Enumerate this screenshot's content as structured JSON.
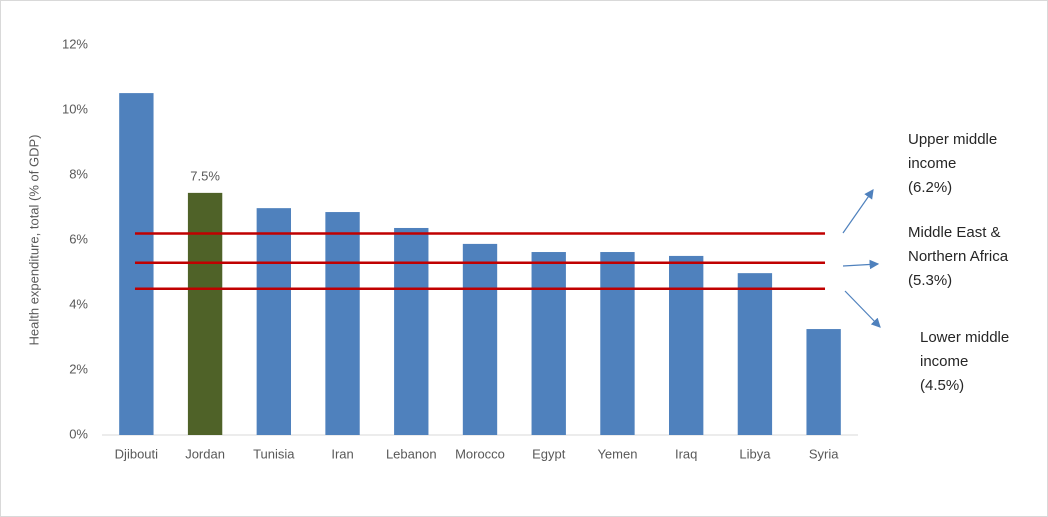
{
  "chart_data": {
    "type": "bar",
    "y_axis_label": "Health expenditure, total (% of GDP)",
    "categories": [
      "Djibouti",
      "Jordan",
      "Tunisia",
      "Iran",
      "Lebanon",
      "Morocco",
      "Egypt",
      "Yemen",
      "Iraq",
      "Libya",
      "Syria"
    ],
    "values": [
      10.52,
      7.45,
      6.98,
      6.86,
      6.37,
      5.88,
      5.63,
      5.63,
      5.51,
      4.98,
      3.26
    ],
    "value_labels": [
      null,
      "7.5%",
      null,
      null,
      null,
      null,
      null,
      null,
      null,
      null,
      null
    ],
    "colors": [
      "#4f81bd",
      "#4f6228",
      "#4f81bd",
      "#4f81bd",
      "#4f81bd",
      "#4f81bd",
      "#4f81bd",
      "#4f81bd",
      "#4f81bd",
      "#4f81bd",
      "#4f81bd"
    ],
    "ylim": [
      0,
      12
    ],
    "yticks": [
      {
        "value": 0,
        "label": "0%"
      },
      {
        "value": 2,
        "label": "2%"
      },
      {
        "value": 4,
        "label": "4%"
      },
      {
        "value": 6,
        "label": "6%"
      },
      {
        "value": 8,
        "label": "8%"
      },
      {
        "value": 10,
        "label": "10%"
      },
      {
        "value": 12,
        "label": "12%"
      }
    ],
    "grid": false,
    "reference_lines": [
      {
        "value": 6.2,
        "color": "#c00000",
        "label_lines": [
          "Upper middle",
          "income",
          "(6.2%)"
        ]
      },
      {
        "value": 5.3,
        "color": "#c00000",
        "label_lines": [
          "Middle East &",
          "Northern Africa",
          "(5.3%)"
        ]
      },
      {
        "value": 4.5,
        "color": "#c00000",
        "label_lines": [
          "Lower middle",
          "income",
          "(4.5%)"
        ]
      }
    ]
  }
}
